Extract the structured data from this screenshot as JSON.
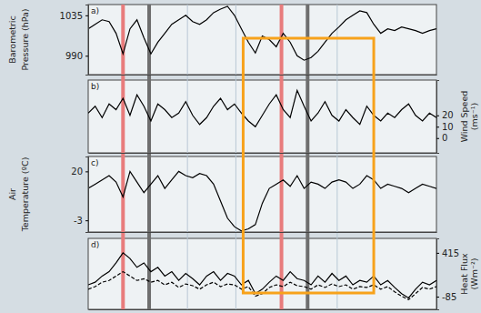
{
  "chart_data": [
    {
      "type": "line",
      "title": "a)",
      "ylabel": [
        "Barometric",
        "Pressure (hPa)"
      ],
      "x": [
        0,
        2,
        4,
        6,
        8,
        10,
        12,
        14,
        16,
        18,
        20,
        22,
        24,
        26,
        28,
        30,
        32,
        34,
        36,
        38,
        40,
        42,
        44,
        46,
        48,
        50,
        52,
        54,
        56,
        58,
        60,
        62,
        64,
        66,
        68,
        70,
        72,
        74,
        76,
        78,
        80,
        82,
        84,
        86,
        88,
        90,
        92,
        94,
        96,
        98,
        100
      ],
      "xlim": [
        0,
        100
      ],
      "xticks": [],
      "ylim": [
        969,
        1047
      ],
      "yticks": [
        990,
        1035
      ],
      "tick_labels": "y",
      "series": [
        {
          "color": "#000000",
          "line_style": "solid",
          "values": [
            1020,
            1025,
            1030,
            1028,
            1015,
            992,
            1020,
            1030,
            1010,
            992,
            1005,
            1015,
            1025,
            1030,
            1035,
            1028,
            1025,
            1030,
            1038,
            1042,
            1045,
            1035,
            1020,
            1005,
            993,
            1012,
            1008,
            1000,
            1015,
            1005,
            990,
            985,
            988,
            995,
            1005,
            1015,
            1022,
            1030,
            1035,
            1040,
            1038,
            1025,
            1015,
            1020,
            1018,
            1022,
            1020,
            1018,
            1015,
            1018,
            1020
          ]
        }
      ]
    },
    {
      "type": "line",
      "title": "b)",
      "ylabel": [
        "Wind Speed",
        "(ms⁻¹)"
      ],
      "x": [
        0,
        2,
        4,
        6,
        8,
        10,
        12,
        14,
        16,
        18,
        20,
        22,
        24,
        26,
        28,
        30,
        32,
        34,
        36,
        38,
        40,
        42,
        44,
        46,
        48,
        50,
        52,
        54,
        56,
        58,
        60,
        62,
        64,
        66,
        68,
        70,
        72,
        74,
        76,
        78,
        80,
        82,
        84,
        86,
        88,
        90,
        92,
        94,
        96,
        98,
        100
      ],
      "xlim": [
        0,
        100
      ],
      "xticks": [],
      "y2lim": [
        -13,
        51
      ],
      "y2ticks": [
        0,
        10,
        20
      ],
      "tick_labels": "y",
      "series": [
        {
          "color": "#000000",
          "line_style": "solid",
          "axis": "y2",
          "values": [
            22,
            28,
            18,
            30,
            25,
            35,
            20,
            38,
            28,
            15,
            30,
            25,
            18,
            22,
            32,
            20,
            12,
            18,
            28,
            35,
            25,
            30,
            22,
            15,
            10,
            20,
            30,
            38,
            25,
            18,
            42,
            28,
            15,
            22,
            32,
            20,
            15,
            25,
            18,
            12,
            28,
            20,
            15,
            22,
            18,
            25,
            30,
            20,
            15,
            22,
            18
          ]
        }
      ]
    },
    {
      "type": "line",
      "title": "c)",
      "ylabel": [
        "Air",
        "Temperature (ºC)"
      ],
      "x": [
        0,
        2,
        4,
        6,
        8,
        10,
        12,
        14,
        16,
        18,
        20,
        22,
        24,
        26,
        28,
        30,
        32,
        34,
        36,
        38,
        40,
        42,
        44,
        46,
        48,
        50,
        52,
        54,
        56,
        58,
        60,
        62,
        64,
        66,
        68,
        70,
        72,
        74,
        76,
        78,
        80,
        82,
        84,
        86,
        88,
        90,
        92,
        94,
        96,
        98,
        100
      ],
      "xlim": [
        0,
        100
      ],
      "xticks": [],
      "ylim": [
        -8.5,
        27
      ],
      "yticks": [
        -3,
        20
      ],
      "tick_labels": "y",
      "series": [
        {
          "color": "#000000",
          "line_style": "solid",
          "values": [
            12,
            14,
            16,
            18,
            15,
            8,
            20,
            15,
            10,
            14,
            18,
            12,
            16,
            20,
            18,
            17,
            19,
            18,
            14,
            6,
            -2,
            -6,
            -8,
            -7,
            -5,
            5,
            12,
            14,
            16,
            13,
            18,
            12,
            15,
            14,
            12,
            15,
            16,
            15,
            12,
            14,
            18,
            16,
            12,
            14,
            13,
            12,
            10,
            12,
            14,
            13,
            12
          ]
        }
      ]
    },
    {
      "type": "line",
      "title": "d)",
      "ylabel": [
        "Heat Flux",
        "(Wm⁻²)"
      ],
      "x": [
        0,
        2,
        4,
        6,
        8,
        10,
        12,
        14,
        16,
        18,
        20,
        22,
        24,
        26,
        28,
        30,
        32,
        34,
        36,
        38,
        40,
        42,
        44,
        46,
        48,
        50,
        52,
        54,
        56,
        58,
        60,
        62,
        64,
        66,
        68,
        70,
        72,
        74,
        76,
        78,
        80,
        82,
        84,
        86,
        88,
        90,
        92,
        94,
        96,
        98,
        100
      ],
      "xlim": [
        0,
        100
      ],
      "xticks": [],
      "y2lim": [
        -230,
        580
      ],
      "y2ticks": [
        -85,
        415
      ],
      "tick_labels": "y",
      "series": [
        {
          "color": "#000000",
          "line_style": "solid",
          "axis": "y2",
          "values": [
            50,
            80,
            150,
            200,
            300,
            415,
            350,
            250,
            300,
            200,
            250,
            150,
            200,
            100,
            180,
            120,
            50,
            150,
            200,
            100,
            180,
            150,
            50,
            100,
            -50,
            0,
            80,
            150,
            100,
            200,
            120,
            100,
            50,
            150,
            80,
            180,
            100,
            150,
            50,
            100,
            80,
            150,
            50,
            100,
            20,
            -50,
            -100,
            0,
            80,
            50,
            100
          ]
        },
        {
          "color": "#000000",
          "line_style": "dashed",
          "axis": "y2",
          "values": [
            0,
            30,
            80,
            100,
            150,
            200,
            150,
            100,
            120,
            80,
            100,
            50,
            80,
            20,
            60,
            40,
            0,
            50,
            80,
            30,
            60,
            50,
            0,
            30,
            -80,
            -50,
            20,
            50,
            30,
            80,
            40,
            30,
            0,
            50,
            20,
            60,
            30,
            50,
            0,
            30,
            20,
            50,
            0,
            30,
            -30,
            -80,
            -120,
            -50,
            20,
            0,
            30
          ]
        }
      ]
    }
  ],
  "events": [
    {
      "x": 10,
      "color": "#e87c7c",
      "line_style": "thick"
    },
    {
      "x": 17.5,
      "color": "#6e6e6e",
      "line_style": "thick"
    },
    {
      "x": 28.5,
      "color": "#b8c8d4",
      "line_style": "thin"
    },
    {
      "x": 42.4,
      "color": "#b8c8d4",
      "line_style": "thin"
    },
    {
      "x": 55.5,
      "color": "#e87c7c",
      "line_style": "thick"
    },
    {
      "x": 63,
      "color": "#6e6e6e",
      "line_style": "thick"
    },
    {
      "x": 71.5,
      "color": "#b8c8d4",
      "line_style": "thin"
    }
  ],
  "highlight": {
    "x": [
      44.5,
      82
    ],
    "color": "#f7a21b"
  }
}
